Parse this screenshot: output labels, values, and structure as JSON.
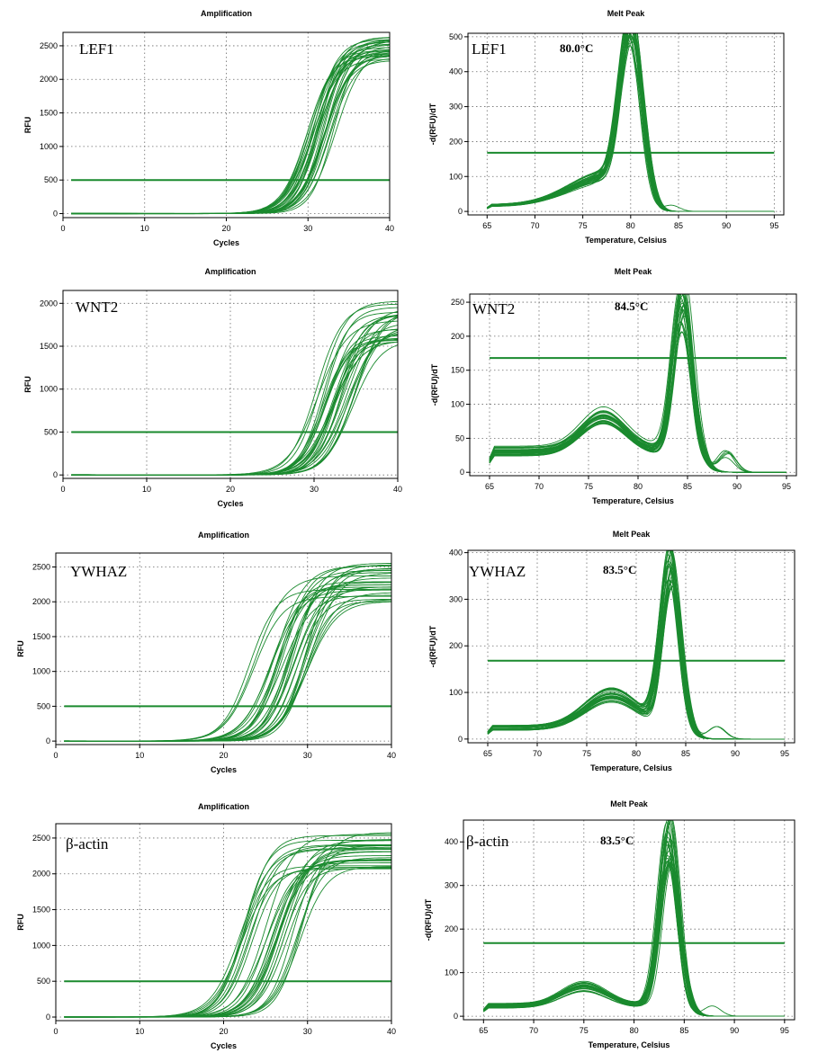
{
  "colors": {
    "curve": "#1a8a2e",
    "threshold": "#1a8a2e",
    "grid": "#6b6b6b"
  },
  "chart_data": [
    {
      "id": "lef1-amp",
      "type": "line",
      "kind": "amplification",
      "title": "Amplification",
      "xlabel": "Cycles",
      "ylabel": "RFU",
      "gene": "LEF1",
      "tm": "",
      "xlim": [
        0,
        40
      ],
      "ylim": [
        -60,
        2700
      ],
      "xticks": [
        0,
        10,
        20,
        30,
        40
      ],
      "yticks": [
        0,
        500,
        1000,
        1500,
        2000,
        2500
      ],
      "grid": true,
      "threshold": 500,
      "x_range": [
        1,
        40
      ],
      "curve_count": 30,
      "curve_params": {
        "midpoint_range": [
          29.5,
          33.5
        ],
        "plateau_range": [
          2250,
          2650
        ],
        "steepness_range": [
          1.35,
          1.7
        ]
      }
    },
    {
      "id": "lef1-melt",
      "type": "line",
      "kind": "melt",
      "title": "Melt Peak",
      "xlabel": "Temperature, Celsius",
      "ylabel": "-d(RFU)/dT",
      "gene": "LEF1",
      "tm": "80.0°C",
      "xlim": [
        63,
        96
      ],
      "ylim": [
        -10,
        510
      ],
      "xticks": [
        65,
        70,
        75,
        80,
        85,
        90,
        95
      ],
      "yticks": [
        0,
        100,
        200,
        300,
        400,
        500
      ],
      "grid": true,
      "threshold": 168,
      "x_range": [
        65,
        95
      ],
      "curve_count": 28,
      "curve_params": {
        "peak_temp": 80.0,
        "peak_height_range": [
          395,
          495
        ],
        "peak_width": 1.6,
        "shoulder_temp": 77.5,
        "shoulder_height": 80,
        "shoulder_width": 5.5,
        "baseline": 18
      }
    },
    {
      "id": "wnt2-amp",
      "type": "line",
      "kind": "amplification",
      "title": "Amplification",
      "xlabel": "Cycles",
      "ylabel": "RFU",
      "gene": "WNT2",
      "tm": "",
      "xlim": [
        0,
        40
      ],
      "ylim": [
        -40,
        2150
      ],
      "xticks": [
        0,
        10,
        20,
        30,
        40
      ],
      "yticks": [
        0,
        500,
        1000,
        1500,
        2000
      ],
      "grid": true,
      "threshold": 500,
      "x_range": [
        1,
        40
      ],
      "curve_count": 30,
      "curve_params": {
        "midpoint_range": [
          30.0,
          35.0
        ],
        "plateau_range": [
          1550,
          2030
        ],
        "steepness_range": [
          1.4,
          1.8
        ]
      }
    },
    {
      "id": "wnt2-melt",
      "type": "line",
      "kind": "melt",
      "title": "Melt Peak",
      "xlabel": "Temperature, Celsius",
      "ylabel": "-d(RFU)/dT",
      "gene": "WNT2",
      "tm": "84.5°C",
      "xlim": [
        63,
        96
      ],
      "ylim": [
        -5,
        262
      ],
      "xticks": [
        65,
        70,
        75,
        80,
        85,
        90,
        95
      ],
      "yticks": [
        0,
        50,
        100,
        150,
        200,
        250
      ],
      "grid": true,
      "threshold": 168,
      "x_range": [
        65,
        95
      ],
      "curve_count": 28,
      "curve_params": {
        "peak_temp": 84.5,
        "peak_height_range": [
          180,
          255
        ],
        "peak_width": 1.3,
        "shoulder_temp": 76.5,
        "shoulder_height": 50,
        "shoulder_width": 3.2,
        "baseline": 32
      }
    },
    {
      "id": "ywhaz-amp",
      "type": "line",
      "kind": "amplification",
      "title": "Amplification",
      "xlabel": "Cycles",
      "ylabel": "RFU",
      "gene": "YWHAZ",
      "tm": "",
      "xlim": [
        0,
        40
      ],
      "ylim": [
        -50,
        2700
      ],
      "xticks": [
        0,
        10,
        20,
        30,
        40
      ],
      "yticks": [
        0,
        500,
        1000,
        1500,
        2000,
        2500
      ],
      "grid": true,
      "threshold": 500,
      "x_range": [
        1,
        40
      ],
      "curve_count": 30,
      "curve_params": {
        "midpoint_range": [
          23.0,
          30.5
        ],
        "plateau_range": [
          2000,
          2580
        ],
        "steepness_range": [
          1.4,
          1.8
        ]
      }
    },
    {
      "id": "ywhaz-melt",
      "type": "line",
      "kind": "melt",
      "title": "Melt Peak",
      "xlabel": "Temperature, Celsius",
      "ylabel": "-d(RFU)/dT",
      "gene": "YWHAZ",
      "tm": "83.5°C",
      "xlim": [
        63,
        96
      ],
      "ylim": [
        -8,
        405
      ],
      "xticks": [
        65,
        70,
        75,
        80,
        85,
        90,
        95
      ],
      "yticks": [
        0,
        100,
        200,
        300,
        400
      ],
      "grid": true,
      "threshold": 168,
      "x_range": [
        65,
        95
      ],
      "curve_count": 28,
      "curve_params": {
        "peak_temp": 83.5,
        "peak_height_range": [
          295,
          390
        ],
        "peak_width": 1.35,
        "shoulder_temp": 77.5,
        "shoulder_height": 75,
        "shoulder_width": 3.8,
        "baseline": 25
      }
    },
    {
      "id": "bactin-amp",
      "type": "line",
      "kind": "amplification",
      "title": "Amplification",
      "xlabel": "Cycles",
      "ylabel": "RFU",
      "gene": "β-actin",
      "tm": "",
      "xlim": [
        0,
        40
      ],
      "ylim": [
        -50,
        2700
      ],
      "xticks": [
        0,
        10,
        20,
        30,
        40
      ],
      "yticks": [
        0,
        500,
        1000,
        1500,
        2000,
        2500
      ],
      "grid": true,
      "threshold": 500,
      "x_range": [
        1,
        40
      ],
      "curve_count": 30,
      "curve_params": {
        "midpoint_range": [
          22.0,
          29.5
        ],
        "plateau_range": [
          2050,
          2600
        ],
        "steepness_range": [
          1.4,
          1.8
        ]
      }
    },
    {
      "id": "bactin-melt",
      "type": "line",
      "kind": "melt",
      "title": "Melt Peak",
      "xlabel": "Temperature, Celsius",
      "ylabel": "-d(RFU)/dT",
      "gene": "β-actin",
      "tm": "83.5°C",
      "xlim": [
        63,
        96
      ],
      "ylim": [
        -8,
        450
      ],
      "xticks": [
        65,
        70,
        75,
        80,
        85,
        90,
        95
      ],
      "yticks": [
        0,
        100,
        200,
        300,
        400
      ],
      "grid": true,
      "threshold": 168,
      "x_range": [
        65,
        95
      ],
      "curve_count": 28,
      "curve_params": {
        "peak_temp": 83.5,
        "peak_height_range": [
          315,
          435
        ],
        "peak_width": 1.35,
        "shoulder_temp": 75.0,
        "shoulder_height": 45,
        "shoulder_width": 3.2,
        "baseline": 25
      }
    }
  ]
}
